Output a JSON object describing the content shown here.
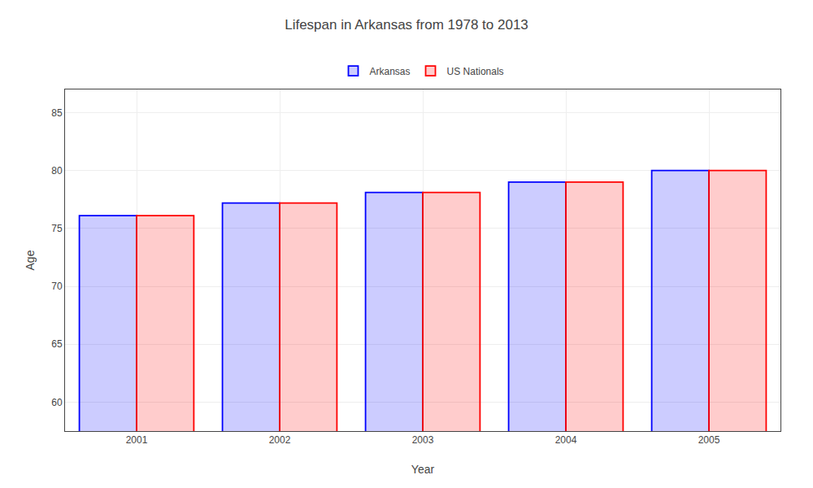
{
  "chart_data": {
    "type": "bar",
    "title": "Lifespan in Arkansas from 1978 to 2013",
    "x_label": "Year",
    "y_label": "Age",
    "categories": [
      "2001",
      "2002",
      "2003",
      "2004",
      "2005"
    ],
    "series": [
      {
        "name": "Arkansas",
        "color": "#0000ff",
        "values": [
          76.1,
          77.2,
          78.1,
          79.0,
          80.0
        ]
      },
      {
        "name": "US Nationals",
        "color": "#ff0000",
        "values": [
          76.1,
          77.2,
          78.1,
          79.0,
          80.0
        ]
      }
    ],
    "ylim": [
      57.5,
      87
    ],
    "yticks": [
      60,
      65,
      70,
      75,
      80,
      85
    ],
    "grid": true,
    "legend": "top"
  }
}
